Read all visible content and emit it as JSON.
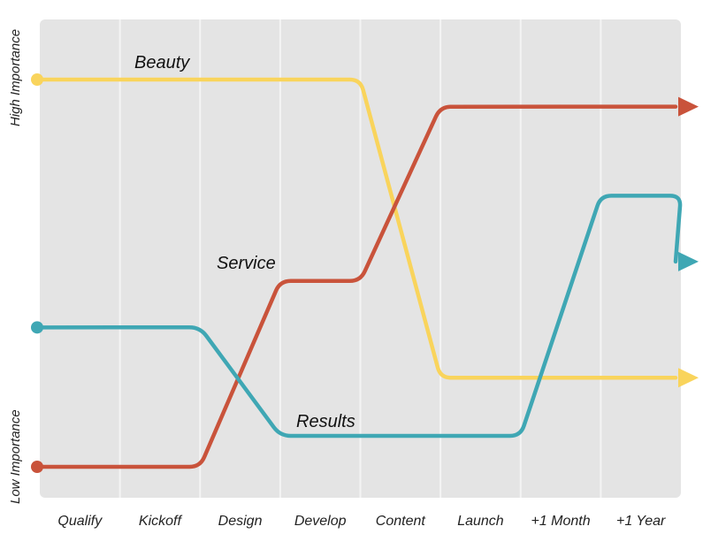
{
  "chart_data": {
    "type": "line",
    "title": "",
    "categories": [
      "Qualify",
      "Kickoff",
      "Design",
      "Develop",
      "Content",
      "Launch",
      "+1 Month",
      "+1 Year"
    ],
    "y_axis": {
      "high_label": "High Importance",
      "low_label": "Low Importance",
      "scale": "relative importance, 0 = low, 1 = high",
      "range": [
        0,
        1
      ]
    },
    "grid": true,
    "legend": "none (series labeled inline)",
    "series": [
      {
        "name": "Beauty",
        "color": "#F9D45C",
        "points": [
          {
            "x": "start",
            "y": 1.0
          },
          {
            "x": "Develop",
            "y": 1.0
          },
          {
            "x": "Content",
            "y": 0.23
          },
          {
            "x": "end",
            "y": 0.23
          }
        ]
      },
      {
        "name": "Service",
        "color": "#C9533B",
        "points": [
          {
            "x": "start",
            "y": 0.0
          },
          {
            "x": "Kickoff",
            "y": 0.0
          },
          {
            "x": "Design",
            "y": 0.48
          },
          {
            "x": "Develop",
            "y": 0.48
          },
          {
            "x": "Content",
            "y": 0.93
          },
          {
            "x": "end",
            "y": 0.93
          }
        ]
      },
      {
        "name": "Results",
        "color": "#3FA7B4",
        "points": [
          {
            "x": "start",
            "y": 0.36
          },
          {
            "x": "Kickoff",
            "y": 0.36
          },
          {
            "x": "Design",
            "y": 0.08
          },
          {
            "x": "Launch",
            "y": 0.08
          },
          {
            "x": "+1 Month",
            "y": 0.7
          },
          {
            "x": "+1 Year",
            "y": 0.7
          },
          {
            "x": "end",
            "y": 0.53
          }
        ]
      }
    ]
  }
}
